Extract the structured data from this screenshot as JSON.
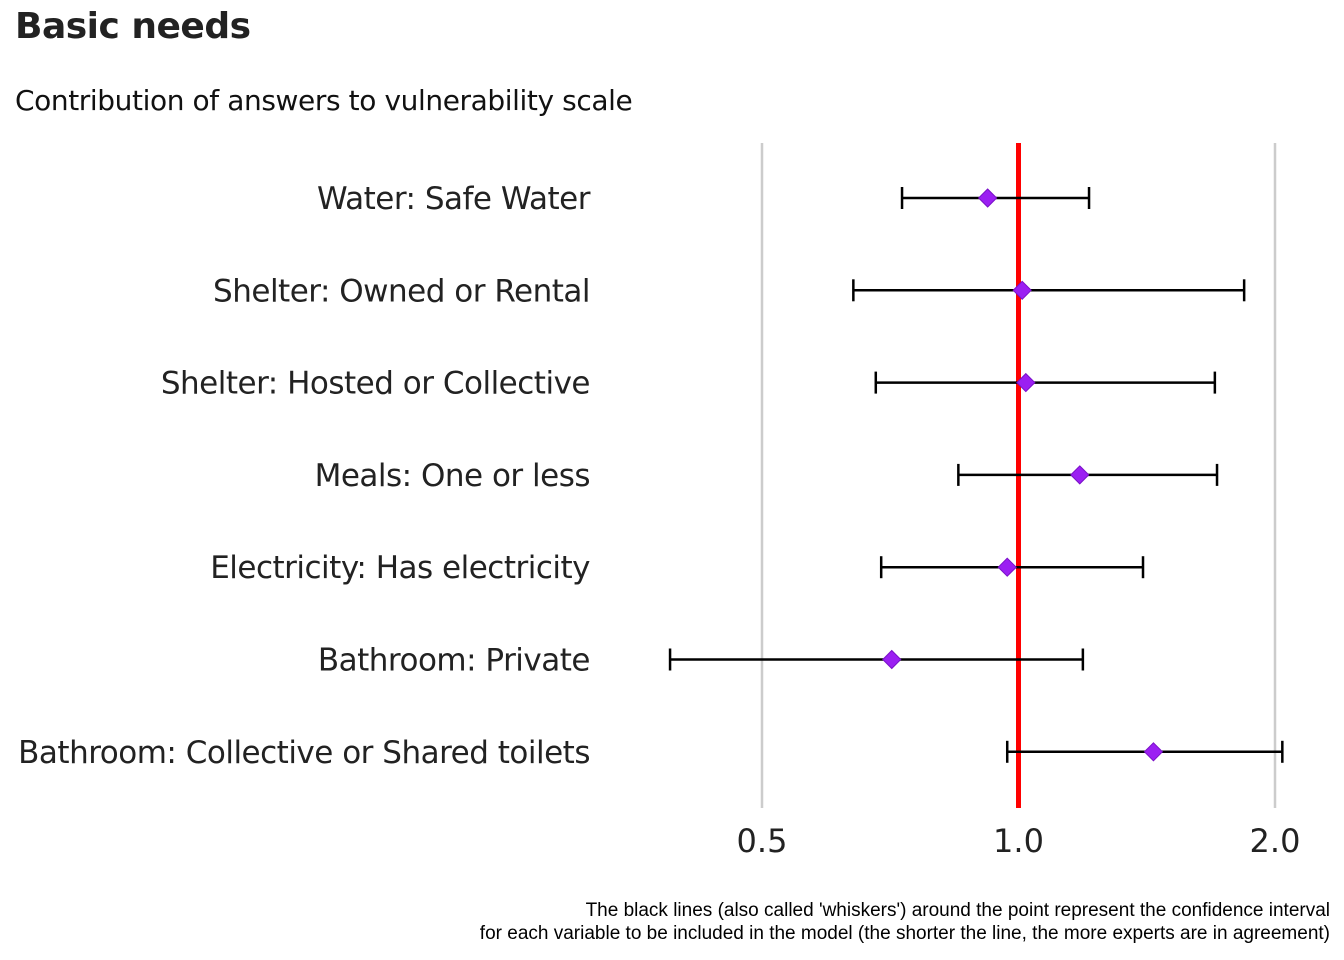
{
  "title": "Basic needs",
  "subtitle": "Contribution of answers to vulnerability scale",
  "caption": {
    "line1": "The black lines (also called 'whiskers') around the point represent the confidence interval",
    "line2": "for each variable to be included in the model (the shorter the line, the more experts are in agreement)"
  },
  "chart_data": {
    "type": "scatter",
    "x_scale": "log2",
    "xlim": [
      0.5,
      2.0
    ],
    "x_ticks": [
      "0.5",
      "1.0",
      "2.0"
    ],
    "reference_line": 1.0,
    "grid": true,
    "categories": [
      "Water: Safe Water",
      "Shelter: Owned or Rental",
      "Shelter: Hosted or Collective",
      "Meals: One or less",
      "Electricity: Has electricity",
      "Bathroom: Private",
      "Bathroom: Collective or Shared toilets"
    ],
    "series": [
      {
        "estimate": [
          0.92,
          1.01,
          1.02,
          1.18,
          0.97,
          0.71,
          1.44
        ],
        "lower": [
          0.73,
          0.64,
          0.68,
          0.85,
          0.69,
          0.39,
          0.97
        ],
        "upper": [
          1.21,
          1.84,
          1.7,
          1.71,
          1.4,
          1.19,
          2.04
        ]
      }
    ],
    "colors": {
      "point": "#9b1ff2",
      "reference": "#ff0000",
      "whisker": "#000000",
      "grid": "#cccccc"
    }
  }
}
